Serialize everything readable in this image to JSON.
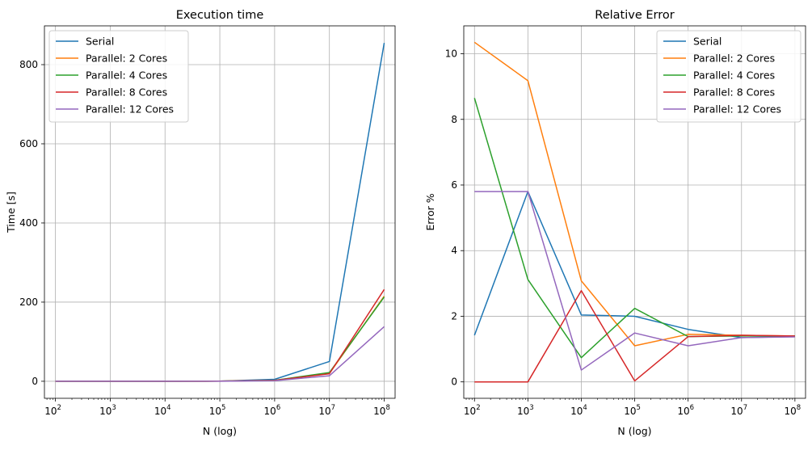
{
  "chart_data": [
    {
      "type": "line",
      "title": "Execution time",
      "xlabel": "N (log)",
      "ylabel": "Time [s]",
      "xscale": "log",
      "xlim": [
        63,
        158000000
      ],
      "ylim": [
        -43,
        898
      ],
      "x": [
        100,
        1000,
        10000,
        100000,
        1000000,
        10000000,
        100000000
      ],
      "xticks": [
        {
          "value": 100,
          "base": "10",
          "exp": "2"
        },
        {
          "value": 1000,
          "base": "10",
          "exp": "3"
        },
        {
          "value": 10000,
          "base": "10",
          "exp": "4"
        },
        {
          "value": 100000,
          "base": "10",
          "exp": "5"
        },
        {
          "value": 1000000,
          "base": "10",
          "exp": "6"
        },
        {
          "value": 10000000,
          "base": "10",
          "exp": "7"
        },
        {
          "value": 100000000,
          "base": "10",
          "exp": "8"
        }
      ],
      "yticks": [
        0,
        200,
        400,
        600,
        800
      ],
      "grid": true,
      "legend_position": "top-left",
      "series": [
        {
          "name": "Serial",
          "color": "#1f77b4",
          "values": [
            0,
            0,
            0,
            0.5,
            5,
            50,
            855
          ]
        },
        {
          "name": "Parallel: 2 Cores",
          "color": "#ff7f0e",
          "values": [
            0,
            0,
            0,
            0.3,
            2.5,
            20,
            215
          ]
        },
        {
          "name": "Parallel: 4 Cores",
          "color": "#2ca02c",
          "values": [
            0,
            0,
            0,
            0.3,
            2.5,
            22,
            213
          ]
        },
        {
          "name": "Parallel: 8 Cores",
          "color": "#d62728",
          "values": [
            0,
            0,
            0,
            0.3,
            2.2,
            19,
            232
          ]
        },
        {
          "name": "Parallel: 12 Cores",
          "color": "#9467bd",
          "values": [
            0,
            0,
            0,
            0.2,
            1.5,
            14,
            138
          ]
        }
      ]
    },
    {
      "type": "line",
      "title": "Relative Error",
      "xlabel": "N (log)",
      "ylabel": "Error %",
      "xscale": "log",
      "xlim": [
        63,
        158000000
      ],
      "ylim": [
        -0.5,
        10.85
      ],
      "x": [
        100,
        1000,
        10000,
        100000,
        1000000,
        10000000,
        100000000
      ],
      "xticks": [
        {
          "value": 100,
          "base": "10",
          "exp": "2"
        },
        {
          "value": 1000,
          "base": "10",
          "exp": "3"
        },
        {
          "value": 10000,
          "base": "10",
          "exp": "4"
        },
        {
          "value": 100000,
          "base": "10",
          "exp": "5"
        },
        {
          "value": 1000000,
          "base": "10",
          "exp": "6"
        },
        {
          "value": 10000000,
          "base": "10",
          "exp": "7"
        },
        {
          "value": 100000000,
          "base": "10",
          "exp": "8"
        }
      ],
      "yticks": [
        0,
        2,
        4,
        6,
        8,
        10
      ],
      "grid": true,
      "legend_position": "top-right",
      "series": [
        {
          "name": "Serial",
          "color": "#1f77b4",
          "values": [
            1.42,
            5.8,
            2.04,
            2.0,
            1.6,
            1.35,
            1.38
          ]
        },
        {
          "name": "Parallel: 2 Cores",
          "color": "#ff7f0e",
          "values": [
            10.35,
            9.18,
            3.08,
            1.1,
            1.45,
            1.42,
            1.4
          ]
        },
        {
          "name": "Parallel: 4 Cores",
          "color": "#2ca02c",
          "values": [
            8.65,
            3.12,
            0.74,
            2.24,
            1.38,
            1.4,
            1.4
          ]
        },
        {
          "name": "Parallel: 8 Cores",
          "color": "#d62728",
          "values": [
            0.0,
            0.0,
            2.78,
            0.03,
            1.38,
            1.42,
            1.4
          ]
        },
        {
          "name": "Parallel: 12 Cores",
          "color": "#9467bd",
          "values": [
            5.8,
            5.8,
            0.36,
            1.49,
            1.1,
            1.35,
            1.37
          ]
        }
      ]
    }
  ]
}
